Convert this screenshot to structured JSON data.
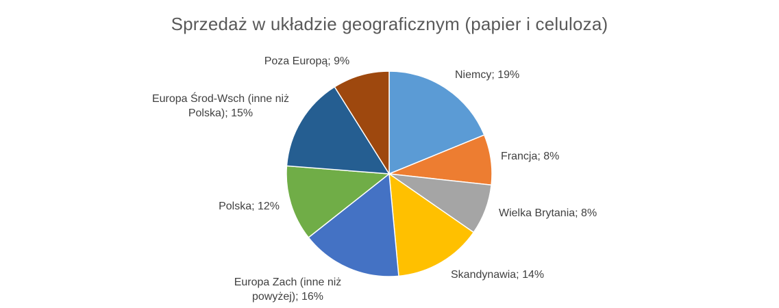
{
  "chart_data": {
    "type": "pie",
    "title": "Sprzedaż w układzie geograficznym (papier i celuloza)",
    "unit": "%",
    "start_angle_deg": 0,
    "direction": "clockwise",
    "legend": "none",
    "slices": [
      {
        "name": "Niemcy",
        "value": 19,
        "color": "#5B9BD5",
        "label_lines": [
          "Niemcy; 19%"
        ]
      },
      {
        "name": "Francja",
        "value": 8,
        "color": "#ED7D31",
        "label_lines": [
          "Francja; 8%"
        ]
      },
      {
        "name": "Wielka Brytania",
        "value": 8,
        "color": "#A5A5A5",
        "label_lines": [
          "Wielka Brytania; 8%"
        ]
      },
      {
        "name": "Skandynawia",
        "value": 14,
        "color": "#FFC000",
        "label_lines": [
          "Skandynawia; 14%"
        ]
      },
      {
        "name": "Europa Zach (inne niż powyżej)",
        "value": 16,
        "color": "#4472C4",
        "label_lines": [
          "Europa Zach (inne niż",
          "powyżej); 16%"
        ]
      },
      {
        "name": "Polska",
        "value": 12,
        "color": "#70AD47",
        "label_lines": [
          "Polska; 12%"
        ]
      },
      {
        "name": "Europa Środ-Wsch (inne niż Polska)",
        "value": 15,
        "color": "#255E91",
        "label_lines": [
          "Europa Środ-Wsch (inne niż",
          "Polska); 15%"
        ]
      },
      {
        "name": "Poza Europą",
        "value": 9,
        "color": "#9E480E",
        "label_lines": [
          "Poza Europą; 9%"
        ]
      }
    ]
  }
}
